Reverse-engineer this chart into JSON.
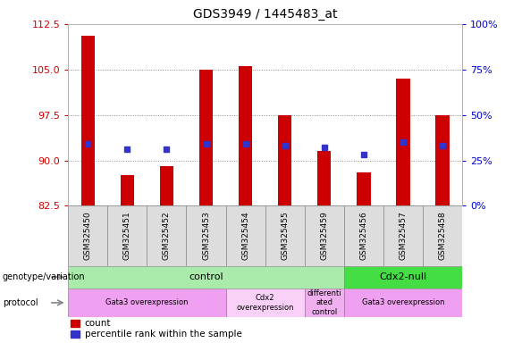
{
  "title": "GDS3949 / 1445483_at",
  "samples": [
    "GSM325450",
    "GSM325451",
    "GSM325452",
    "GSM325453",
    "GSM325454",
    "GSM325455",
    "GSM325459",
    "GSM325456",
    "GSM325457",
    "GSM325458"
  ],
  "counts": [
    110.5,
    87.5,
    89.0,
    105.0,
    105.5,
    97.5,
    91.5,
    88.0,
    103.5,
    97.5
  ],
  "percentile_ranks": [
    34,
    31,
    31,
    34,
    34,
    33,
    32,
    28,
    35,
    33
  ],
  "ylim_left": [
    82.5,
    112.5
  ],
  "yticks_left": [
    82.5,
    90.0,
    97.5,
    105.0,
    112.5
  ],
  "ylim_right": [
    0,
    100
  ],
  "yticks_right": [
    0,
    25,
    50,
    75,
    100
  ],
  "bar_color": "#cc0000",
  "dot_color": "#3333cc",
  "bar_bottom": 82.5,
  "bar_width": 0.35,
  "genotype_groups": [
    {
      "label": "control",
      "start": 0,
      "end": 7,
      "color": "#aaeaaa"
    },
    {
      "label": "Cdx2-null",
      "start": 7,
      "end": 10,
      "color": "#44dd44"
    }
  ],
  "protocol_groups": [
    {
      "label": "Gata3 overexpression",
      "start": 0,
      "end": 4,
      "color": "#f0a0f0"
    },
    {
      "label": "Cdx2\noverexpression",
      "start": 4,
      "end": 6,
      "color": "#f8d0f8"
    },
    {
      "label": "differenti\nated\ncontrol",
      "start": 6,
      "end": 7,
      "color": "#f0b0f0"
    },
    {
      "label": "Gata3 overexpression",
      "start": 7,
      "end": 10,
      "color": "#f0a0f0"
    }
  ],
  "left_label_color": "#cc0000",
  "right_label_color": "#0000cc",
  "grid_color": "#888888",
  "bg_color": "#ffffff"
}
